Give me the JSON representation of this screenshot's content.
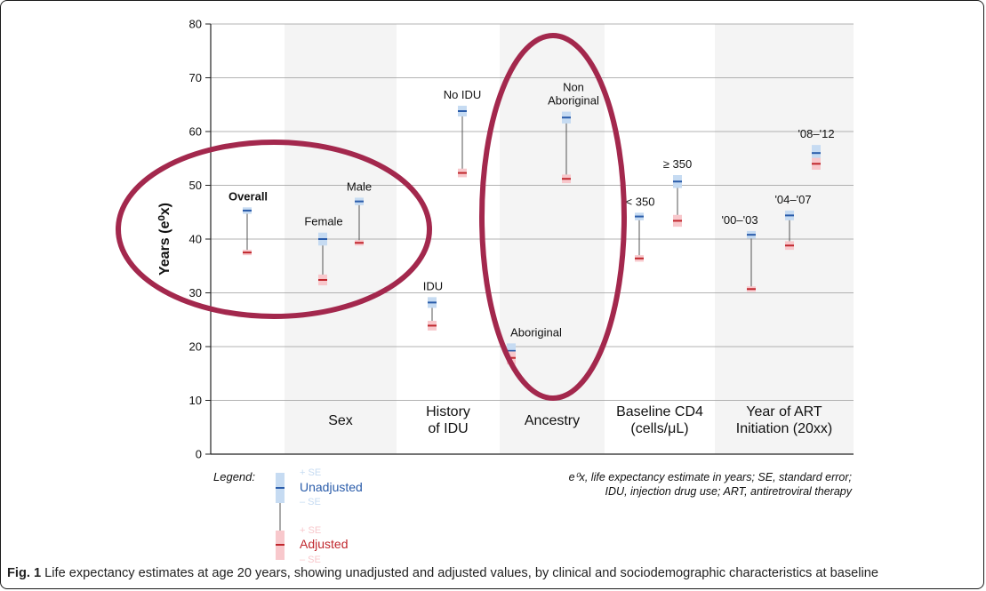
{
  "chart_data": {
    "type": "scatter",
    "ylabel": "Years (e⁰x)",
    "ylim": [
      0,
      80
    ],
    "yticks": [
      0,
      10,
      20,
      30,
      40,
      50,
      60,
      70,
      80
    ],
    "grid": true,
    "groups": [
      {
        "label": "",
        "shaded": false
      },
      {
        "label": "Sex",
        "shaded": true
      },
      {
        "label": "History of IDU",
        "label_lines": [
          "History",
          "of IDU"
        ],
        "shaded": false
      },
      {
        "label": "Ancestry",
        "shaded": true
      },
      {
        "label": "Baseline CD4 (cells/μL)",
        "label_lines": [
          "Baseline CD4",
          "(cells/μL)"
        ],
        "shaded": false
      },
      {
        "label": "Year of ART Initiation (20xx)",
        "label_lines": [
          "Year of ART",
          "Initiation (20xx)"
        ],
        "shaded": true
      }
    ],
    "categories": [
      "Overall",
      "Female",
      "Male",
      "IDU",
      "No IDU",
      "Aboriginal",
      "Non Aboriginal",
      "< 350",
      "≥ 350",
      "'00–'03",
      "'04–'07",
      "'08–'12"
    ],
    "category_label_lines": [
      [
        "Overall"
      ],
      [
        "Female"
      ],
      [
        "Male"
      ],
      [
        "IDU"
      ],
      [
        "No IDU"
      ],
      [
        "Aboriginal"
      ],
      [
        "Non",
        "Aboriginal"
      ],
      [
        "< 350"
      ],
      [
        "≥ 350"
      ],
      [
        "'00–'03"
      ],
      [
        "'04–'07"
      ],
      [
        "'08–'12"
      ]
    ],
    "category_group": [
      0,
      1,
      1,
      2,
      2,
      3,
      3,
      4,
      4,
      5,
      5,
      5
    ],
    "series": [
      {
        "name": "Unadjusted",
        "color": "#2a5caa",
        "se_color": "#c6dbf2",
        "values": [
          45.3,
          40.0,
          47.0,
          28.2,
          63.8,
          19.2,
          62.6,
          44.2,
          50.7,
          40.8,
          44.4,
          56.0
        ],
        "se": [
          0.6,
          1.2,
          0.7,
          1.0,
          1.0,
          1.4,
          1.1,
          0.7,
          1.2,
          0.7,
          0.9,
          1.5
        ]
      },
      {
        "name": "Adjusted",
        "color": "#c0272d",
        "se_color": "#f8c8cc",
        "values": [
          37.5,
          32.4,
          39.3,
          23.9,
          52.3,
          17.9,
          51.2,
          36.4,
          43.4,
          30.7,
          38.8,
          54.0
        ],
        "se": [
          0.5,
          1.0,
          0.5,
          0.9,
          0.8,
          1.2,
          0.8,
          0.6,
          1.1,
          0.5,
          0.8,
          1.1
        ]
      }
    ],
    "legend": {
      "title": "Legend:",
      "plus_se": "+ SE",
      "minus_se": "– SE",
      "unadjusted": "Unadjusted",
      "adjusted": "Adjusted"
    },
    "notes": {
      "e0x_symbol": "e⁰x",
      "line1_rest": ", life expectancy estimate in years; SE, standard error;",
      "line2": "IDU, injection drug use; ART, antiretroviral therapy"
    },
    "annotations": [
      {
        "type": "ellipse",
        "color": "#a3284d",
        "description": "highlight"
      }
    ]
  },
  "caption": {
    "label": "Fig. 1",
    "text": " Life expectancy estimates at age 20 years, showing unadjusted and adjusted values, by clinical and sociodemographic characteristics at baseline"
  }
}
